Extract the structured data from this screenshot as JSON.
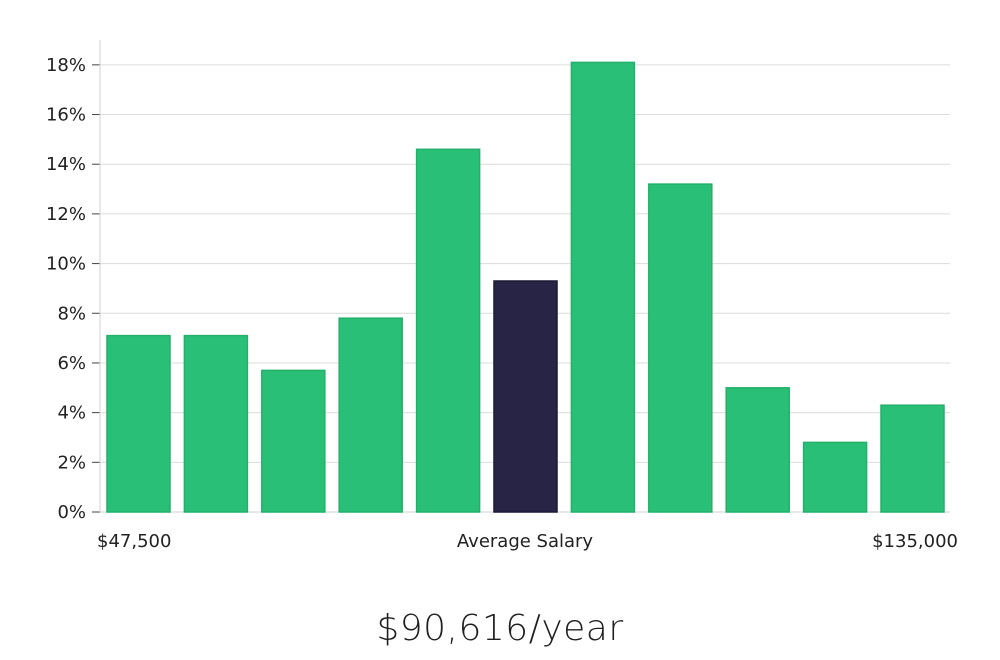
{
  "chart_data": {
    "type": "bar",
    "categories": [
      "bin-1",
      "bin-2",
      "bin-3",
      "bin-4",
      "bin-5",
      "bin-6",
      "bin-7",
      "bin-8",
      "bin-9",
      "bin-10",
      "bin-11"
    ],
    "values": [
      7.1,
      7.1,
      5.7,
      7.8,
      14.6,
      9.3,
      18.1,
      13.2,
      5.0,
      2.8,
      4.3
    ],
    "highlight_index": 5,
    "ylim": [
      0,
      19
    ],
    "yticks": [
      0,
      2,
      4,
      6,
      8,
      10,
      12,
      14,
      16,
      18
    ],
    "ytick_suffix": "%",
    "grid": true,
    "x_labels": {
      "left": "$47,500",
      "center": "Average Salary",
      "right": "$135,000"
    },
    "colors": {
      "bar": "#2abf77",
      "bar_stroke": "#22b06b",
      "highlight": "#272446",
      "grid": "#dcdcdc",
      "axis": "#d0d0d0"
    }
  },
  "salary": {
    "text": "$90,616/year"
  }
}
